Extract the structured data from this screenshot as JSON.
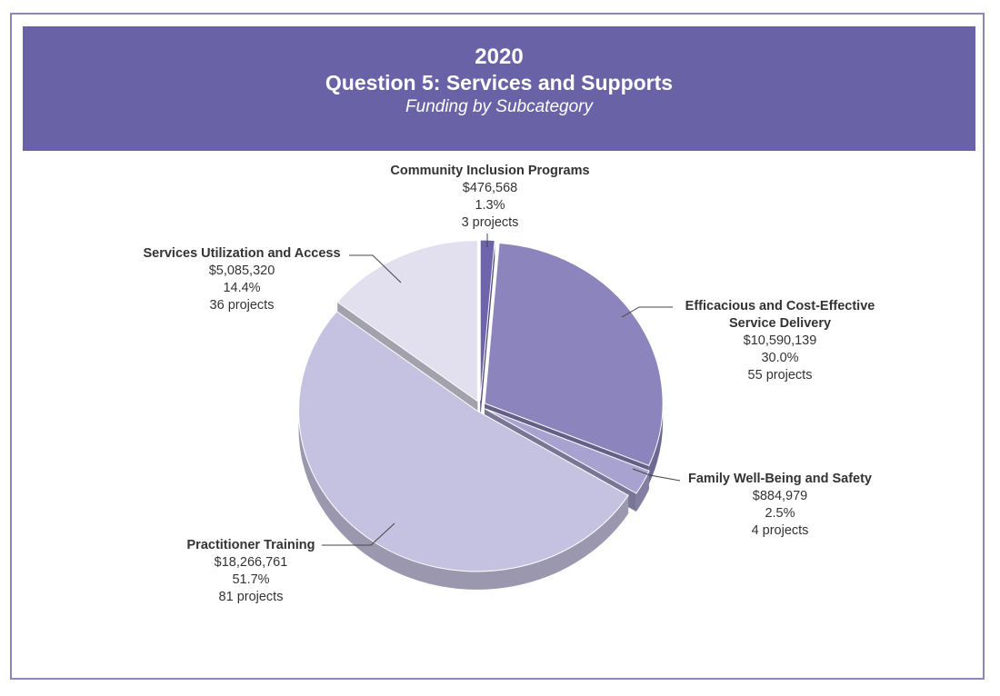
{
  "header": {
    "year": "2020",
    "title": "Question 5: Services and Supports",
    "subtitle": "Funding by Subcategory"
  },
  "colors": {
    "header_bg": "#6a62a6",
    "frame_border": "#8f84bd"
  },
  "chart_data": {
    "type": "pie",
    "style": "3d-exploded",
    "title": "Question 5: Services and Supports",
    "subtitle": "Funding by Subcategory",
    "slices": [
      {
        "name": "Community Inclusion Programs",
        "amount": "$476,568",
        "percent_label": "1.3%",
        "projects_label": "3 projects",
        "value": 1.3,
        "amount_value": 476568,
        "projects": 3,
        "color": "#6e64aa"
      },
      {
        "name": "Efficacious and Cost-Effective Service Delivery",
        "name_lines": [
          "Efficacious and Cost-Effective",
          "Service Delivery"
        ],
        "amount": "$10,590,139",
        "percent_label": "30.0%",
        "projects_label": "55 projects",
        "value": 30.0,
        "amount_value": 10590139,
        "projects": 55,
        "color": "#8c84bc"
      },
      {
        "name": "Family Well-Being and Safety",
        "amount": "$884,979",
        "percent_label": "2.5%",
        "projects_label": "4 projects",
        "value": 2.5,
        "amount_value": 884979,
        "projects": 4,
        "color": "#a8a2d0"
      },
      {
        "name": "Practitioner Training",
        "amount": "$18,266,761",
        "percent_label": "51.7%",
        "projects_label": "81 projects",
        "value": 51.7,
        "amount_value": 18266761,
        "projects": 81,
        "color": "#c5c1e0"
      },
      {
        "name": "Services Utilization and Access",
        "amount": "$5,085,320",
        "percent_label": "14.4%",
        "projects_label": "36 projects",
        "value": 14.4,
        "amount_value": 5085320,
        "projects": 36,
        "color": "#e2e0ef"
      }
    ],
    "legend": "none (leader-line labels)"
  }
}
